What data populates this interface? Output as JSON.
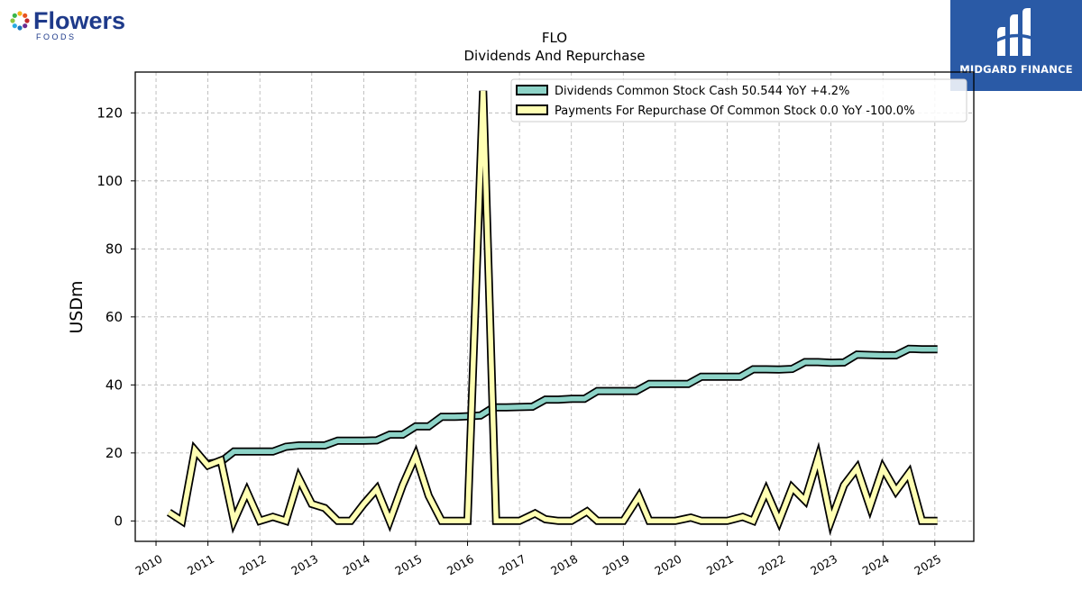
{
  "logos": {
    "left_brand": "Flowers",
    "left_sub": "FOODS",
    "right_brand": "MIDGARD FINANCE"
  },
  "colors": {
    "dividends": "#8dd3c7",
    "repurchase": "#ffffb3",
    "outline": "#000000",
    "grid": "#b0b0b0",
    "midgard_bg": "#2a5aa6"
  },
  "chart_data": {
    "type": "line",
    "title": "FLO",
    "subtitle": "Dividends And Repurchase",
    "ylabel": "USDm",
    "xlabel": "",
    "ylim": [
      -6,
      132
    ],
    "xlim": [
      2009.6,
      2025.75
    ],
    "yticks": [
      0,
      20,
      40,
      60,
      80,
      100,
      120
    ],
    "xticks": [
      "2010",
      "2011",
      "2012",
      "2013",
      "2014",
      "2015",
      "2016",
      "2017",
      "2018",
      "2019",
      "2020",
      "2021",
      "2022",
      "2023",
      "2024",
      "2025"
    ],
    "grid": true,
    "legend_position": "top-right",
    "series": [
      {
        "name": "Dividends Common Stock Cash  50.544 YoY +4.2%",
        "color": "#8dd3c7",
        "points": [
          [
            2011.0,
            16.8
          ],
          [
            2011.25,
            17.4
          ],
          [
            2011.5,
            20.4
          ],
          [
            2011.75,
            20.4
          ],
          [
            2012.0,
            20.4
          ],
          [
            2012.25,
            20.4
          ],
          [
            2012.5,
            21.8
          ],
          [
            2012.75,
            22.2
          ],
          [
            2013.0,
            22.2
          ],
          [
            2013.25,
            22.2
          ],
          [
            2013.5,
            23.6
          ],
          [
            2013.75,
            23.6
          ],
          [
            2014.0,
            23.6
          ],
          [
            2014.25,
            23.7
          ],
          [
            2014.5,
            25.4
          ],
          [
            2014.75,
            25.4
          ],
          [
            2015.0,
            27.8
          ],
          [
            2015.25,
            27.8
          ],
          [
            2015.5,
            30.6
          ],
          [
            2015.75,
            30.6
          ],
          [
            2016.0,
            30.8
          ],
          [
            2016.25,
            31.0
          ],
          [
            2016.5,
            33.4
          ],
          [
            2016.75,
            33.4
          ],
          [
            2017.0,
            33.5
          ],
          [
            2017.25,
            33.6
          ],
          [
            2017.5,
            35.7
          ],
          [
            2017.75,
            35.7
          ],
          [
            2018.0,
            35.9
          ],
          [
            2018.25,
            35.9
          ],
          [
            2018.5,
            38.2
          ],
          [
            2018.75,
            38.2
          ],
          [
            2019.0,
            38.2
          ],
          [
            2019.25,
            38.2
          ],
          [
            2019.5,
            40.3
          ],
          [
            2019.75,
            40.3
          ],
          [
            2020.0,
            40.3
          ],
          [
            2020.25,
            40.3
          ],
          [
            2020.5,
            42.4
          ],
          [
            2020.75,
            42.4
          ],
          [
            2021.0,
            42.4
          ],
          [
            2021.25,
            42.4
          ],
          [
            2021.5,
            44.6
          ],
          [
            2021.75,
            44.6
          ],
          [
            2022.0,
            44.5
          ],
          [
            2022.25,
            44.7
          ],
          [
            2022.5,
            46.7
          ],
          [
            2022.75,
            46.7
          ],
          [
            2023.0,
            46.5
          ],
          [
            2023.25,
            46.6
          ],
          [
            2023.5,
            48.9
          ],
          [
            2023.75,
            48.8
          ],
          [
            2024.0,
            48.7
          ],
          [
            2024.25,
            48.7
          ],
          [
            2024.5,
            50.6
          ],
          [
            2024.75,
            50.5
          ],
          [
            2025.05,
            50.5
          ]
        ]
      },
      {
        "name": "Payments For Repurchase Of Common Stock  0.0 YoY -100.0%",
        "color": "#ffffb3",
        "points": [
          [
            2010.25,
            2.5
          ],
          [
            2010.5,
            0.0
          ],
          [
            2010.75,
            20.8
          ],
          [
            2011.0,
            16.3
          ],
          [
            2011.25,
            17.8
          ],
          [
            2011.5,
            0.0
          ],
          [
            2011.75,
            8.6
          ],
          [
            2012.0,
            0.0
          ],
          [
            2012.25,
            1.2
          ],
          [
            2012.5,
            0.0
          ],
          [
            2012.75,
            12.6
          ],
          [
            2013.0,
            5.0
          ],
          [
            2013.25,
            3.8
          ],
          [
            2013.5,
            0.0
          ],
          [
            2013.75,
            0.0
          ],
          [
            2014.0,
            5.0
          ],
          [
            2014.25,
            9.4
          ],
          [
            2014.5,
            0.0
          ],
          [
            2014.75,
            10.5
          ],
          [
            2015.0,
            19.2
          ],
          [
            2015.25,
            7.4
          ],
          [
            2015.5,
            0.0
          ],
          [
            2015.75,
            0.0
          ],
          [
            2016.0,
            0.0
          ],
          [
            2016.3,
            126.5
          ],
          [
            2016.55,
            0.0
          ],
          [
            2016.75,
            0.0
          ],
          [
            2017.0,
            0.0
          ],
          [
            2017.3,
            2.2
          ],
          [
            2017.5,
            0.5
          ],
          [
            2017.75,
            0.0
          ],
          [
            2018.0,
            0.0
          ],
          [
            2018.3,
            2.8
          ],
          [
            2018.5,
            0.0
          ],
          [
            2018.75,
            0.0
          ],
          [
            2019.0,
            0.0
          ],
          [
            2019.3,
            7.2
          ],
          [
            2019.5,
            0.0
          ],
          [
            2019.75,
            0.0
          ],
          [
            2020.0,
            0.0
          ],
          [
            2020.3,
            1.0
          ],
          [
            2020.5,
            0.0
          ],
          [
            2020.75,
            0.0
          ],
          [
            2021.0,
            0.0
          ],
          [
            2021.3,
            1.2
          ],
          [
            2021.5,
            0.0
          ],
          [
            2021.75,
            8.8
          ],
          [
            2022.0,
            0.0
          ],
          [
            2022.25,
            9.8
          ],
          [
            2022.5,
            6.0
          ],
          [
            2022.75,
            18.5
          ],
          [
            2023.0,
            0.0
          ],
          [
            2023.25,
            10.5
          ],
          [
            2023.5,
            15.5
          ],
          [
            2023.75,
            4.2
          ],
          [
            2024.0,
            15.5
          ],
          [
            2024.25,
            8.8
          ],
          [
            2024.5,
            14.0
          ],
          [
            2024.75,
            0.0
          ],
          [
            2025.05,
            0.0
          ]
        ]
      }
    ]
  }
}
